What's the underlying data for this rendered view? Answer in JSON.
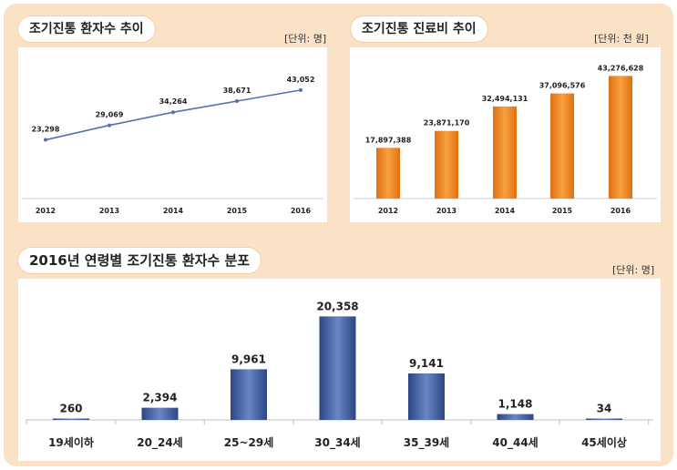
{
  "colors": {
    "background": "#fbe1c6",
    "line": "#5570b3",
    "orange_bar": "#f08a24",
    "blue_bar": "#3e5a9e"
  },
  "chart_data": [
    {
      "type": "line",
      "title": "조기진통 환자수 추이",
      "unit_label": "[단위: 명]",
      "categories": [
        "2012",
        "2013",
        "2014",
        "2015",
        "2016"
      ],
      "values": [
        23298,
        29069,
        34264,
        38671,
        43052
      ],
      "data_labels": [
        "23,298",
        "29,069",
        "34,264",
        "38,671",
        "43,052"
      ],
      "ylim": [
        0,
        60000
      ],
      "grid": false
    },
    {
      "type": "bar",
      "title": "조기진통 진료비 추이",
      "unit_label": "[단위: 천 원]",
      "categories": [
        "2012",
        "2013",
        "2014",
        "2015",
        "2016"
      ],
      "values": [
        17897388,
        23871170,
        32494131,
        37096576,
        43276628
      ],
      "data_labels": [
        "17,897,388",
        "23,871,170",
        "32,494,131",
        "37,096,576",
        "43,276,628"
      ],
      "ylim": [
        0,
        45000000
      ],
      "grid": false
    },
    {
      "type": "bar",
      "title": "2016년 연령별 조기진통 환자수 분포",
      "unit_label": "[단위: 명]",
      "categories": [
        "19세이하",
        "20_24세",
        "25~29세",
        "30_34세",
        "35_39세",
        "40_44세",
        "45세이상"
      ],
      "values": [
        260,
        2394,
        9961,
        20358,
        9141,
        1148,
        34
      ],
      "data_labels": [
        "260",
        "2,394",
        "9,961",
        "20,358",
        "9,141",
        "1,148",
        "34"
      ],
      "ylim": [
        0,
        21500
      ],
      "grid": false
    }
  ]
}
